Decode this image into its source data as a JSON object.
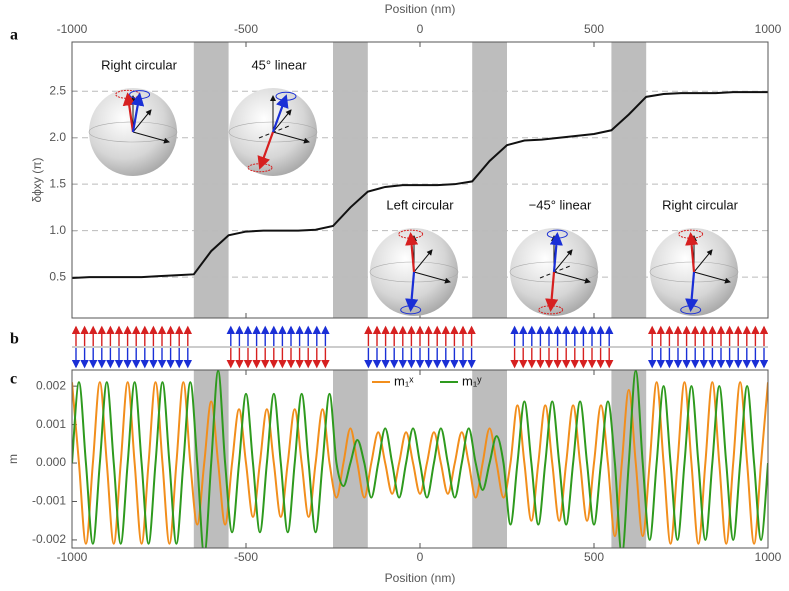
{
  "panel_labels": [
    "a",
    "b",
    "c"
  ],
  "shaded_regions": [
    [
      -650,
      -550
    ],
    [
      -250,
      -150
    ],
    [
      150,
      250
    ],
    [
      550,
      650
    ]
  ],
  "chart_data": [
    {
      "type": "line",
      "xlabel": "Position (nm)",
      "ylabel": "δϕxy (π)",
      "xlim": [
        -1000,
        1000
      ],
      "xticks": [
        -1000,
        -500,
        0,
        500,
        1000
      ],
      "ylim": [
        0.06,
        3.03
      ],
      "yticks": [
        0.5,
        {
          "value": 1,
          "label": "1.0"
        },
        1.5,
        {
          "value": 2,
          "label": "2.0"
        },
        2.5
      ],
      "grid": true,
      "x": [
        -1000,
        -950,
        -900,
        -850,
        -800,
        -750,
        -700,
        -650,
        -600,
        -550,
        -500,
        -450,
        -400,
        -350,
        -300,
        -250,
        -200,
        -150,
        -100,
        -50,
        0,
        50,
        100,
        150,
        200,
        250,
        300,
        350,
        400,
        450,
        500,
        550,
        600,
        650,
        700,
        750,
        800,
        850,
        900,
        950,
        1000
      ],
      "series": [
        {
          "color": "#111111",
          "values": [
            0.49,
            0.5,
            0.5,
            0.5,
            0.5,
            0.51,
            0.52,
            0.53,
            0.78,
            0.95,
            0.99,
            1.0,
            1.0,
            1.0,
            1.01,
            1.05,
            1.25,
            1.42,
            1.47,
            1.49,
            1.49,
            1.49,
            1.5,
            1.53,
            1.75,
            1.92,
            1.97,
            1.98,
            2.0,
            2.02,
            2.04,
            2.08,
            2.25,
            2.44,
            2.47,
            2.48,
            2.48,
            2.48,
            2.49,
            2.49,
            2.49
          ]
        }
      ],
      "annotations": [
        "Right circular",
        "45° linear",
        "Left circular",
        "−45° linear",
        "Right circular"
      ]
    },
    {
      "type": "line",
      "xlabel": "Position (nm)",
      "ylabel": "m",
      "legend": "top",
      "xlim": [
        -1000,
        1000
      ],
      "xticks": [
        -1000,
        -500,
        0,
        500,
        1000
      ],
      "ylim": [
        -0.00221,
        0.00242
      ],
      "yticks": [
        0.002,
        0.001,
        {
          "value": 0,
          "label": "0.000"
        },
        -0.001,
        -0.002
      ],
      "x": [
        -1000,
        -980,
        -960,
        -940,
        -920,
        -900,
        -880,
        -860,
        -840,
        -820,
        -800,
        -780,
        -760,
        -740,
        -720,
        -700,
        -680,
        -660,
        -640,
        -620,
        -600,
        -580,
        -560,
        -540,
        -520,
        -500,
        -480,
        -460,
        -440,
        -420,
        -400,
        -380,
        -360,
        -340,
        -320,
        -300,
        -280,
        -260,
        -240,
        -220,
        -200,
        -180,
        -160,
        -140,
        -120,
        -100,
        -80,
        -60,
        -40,
        -20,
        0,
        20,
        40,
        60,
        80,
        100,
        120,
        140,
        160,
        180,
        200,
        220,
        240,
        260,
        280,
        300,
        320,
        340,
        360,
        380,
        400,
        420,
        440,
        460,
        480,
        500,
        520,
        540,
        560,
        580,
        600,
        620,
        640,
        660,
        680,
        700,
        720,
        740,
        760,
        780,
        800,
        820,
        840,
        860,
        880,
        900,
        920,
        940,
        960,
        980,
        1000
      ],
      "series": [
        {
          "name": "m₁ˣ",
          "color": "#f28e1c",
          "values": [
            0.0021,
            0,
            -0.0021,
            0,
            0.0021,
            0,
            -0.0021,
            0,
            0.0021,
            0,
            -0.0021,
            0,
            0.0021,
            0,
            -0.0021,
            0,
            0.0021,
            0,
            -0.0016,
            0,
            0.0016,
            0,
            -0.0016,
            0,
            0.0014,
            0,
            -0.0014,
            0,
            0.0014,
            0,
            -0.0014,
            0,
            0.0014,
            0,
            -0.0014,
            0,
            0.0014,
            0,
            -0.0009,
            0,
            0.0009,
            0,
            -0.0009,
            0,
            0.0008,
            0,
            -0.0008,
            0,
            0.0008,
            0,
            -0.0008,
            0,
            0.0008,
            0,
            -0.0008,
            0,
            0.0008,
            0,
            -0.0009,
            0,
            0.0009,
            0,
            -0.0009,
            0,
            0.0015,
            0,
            -0.0015,
            0,
            0.0015,
            0,
            -0.0015,
            0,
            0.0015,
            0,
            -0.0015,
            0,
            0.0015,
            0,
            -0.0019,
            0,
            0.0019,
            0,
            -0.0019,
            0,
            0.0021,
            0,
            -0.0021,
            0,
            0.0021,
            0,
            -0.0021,
            0,
            0.0021,
            0,
            -0.0021,
            0,
            0.0021,
            0,
            -0.0021,
            0,
            0.0021
          ]
        },
        {
          "name": "m₁ʸ",
          "color": "#2e9a1e",
          "values": [
            0,
            0.0021,
            0,
            -0.0021,
            0,
            0.0021,
            0,
            -0.0021,
            0,
            0.0021,
            0,
            -0.0021,
            0,
            0.0021,
            0,
            -0.0021,
            0,
            0.0021,
            0,
            -0.0024,
            0,
            0.0024,
            0,
            -0.0018,
            0,
            0.0018,
            0,
            -0.0018,
            0,
            0.0018,
            0,
            -0.0018,
            0,
            0.0018,
            0,
            -0.0018,
            0,
            0.0018,
            0,
            -0.0006,
            0,
            0.0006,
            0,
            -0.0009,
            0,
            0.0009,
            0,
            -0.0009,
            0,
            0.0009,
            0,
            -0.0009,
            0,
            0.0009,
            0,
            -0.0009,
            0,
            0.0009,
            0,
            -0.0007,
            0,
            0.0007,
            0,
            -0.0016,
            0,
            0.0016,
            0,
            -0.0016,
            0,
            0.0016,
            0,
            -0.0016,
            0,
            0.0016,
            0,
            -0.0016,
            0,
            0.0016,
            0,
            -0.0024,
            0,
            0.0024,
            0,
            -0.002,
            0,
            0.002,
            0,
            -0.002,
            0,
            0.002,
            0,
            -0.002,
            0,
            0.002,
            0,
            -0.002,
            0,
            0.002,
            0,
            -0.002,
            0
          ]
        }
      ]
    }
  ]
}
